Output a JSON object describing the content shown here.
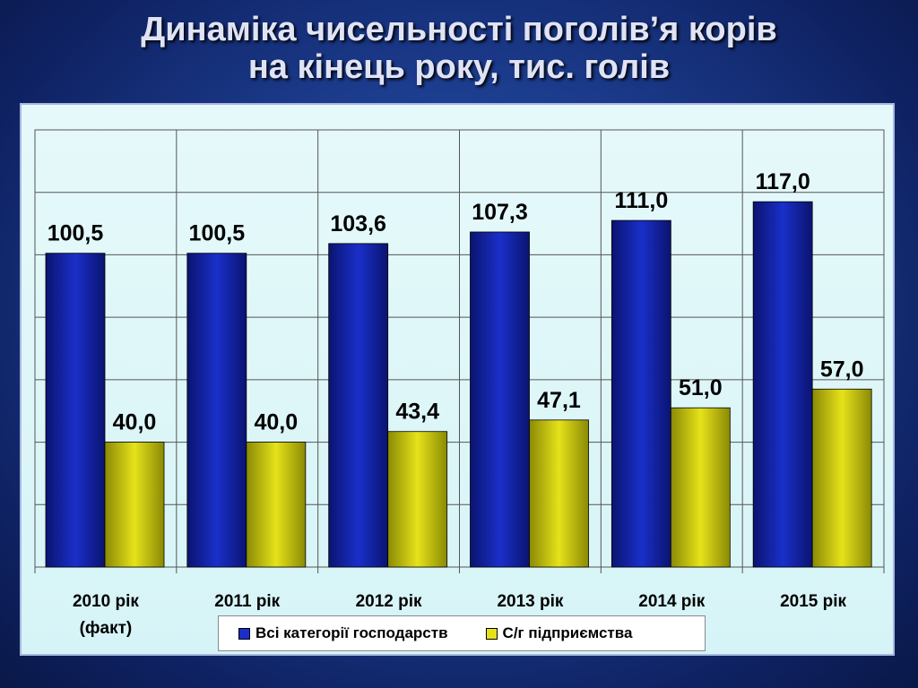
{
  "title": {
    "line1": "Динаміка чисельності поголів’я корів",
    "line2": "на кінець року, тис. голів"
  },
  "colors": {
    "series_all": "#1a2fc9",
    "series_agro": "#e6e21a",
    "background": "#1b3a8a",
    "plot_bg": "#d6f4f7"
  },
  "chart_data": {
    "type": "bar",
    "title": "Динаміка чисельності поголів’я корів на кінець року, тис. голів",
    "categories": [
      [
        "2010 рік",
        "(факт)"
      ],
      [
        "2011 рік"
      ],
      [
        "2012 рік"
      ],
      [
        "2013 рік"
      ],
      [
        "2014 рік"
      ],
      [
        "2015 рік"
      ]
    ],
    "series": [
      {
        "name": "Всі категорії господарств",
        "color": "#1a2fc9",
        "values": [
          100.5,
          100.5,
          103.6,
          107.3,
          111.0,
          117.0
        ],
        "labels": [
          "100,5",
          "100,5",
          "103,6",
          "107,3",
          "111,0",
          "117,0"
        ]
      },
      {
        "name": "С/г підприємства",
        "color": "#e6e21a",
        "values": [
          40.0,
          40.0,
          43.4,
          47.1,
          51.0,
          57.0
        ],
        "labels": [
          "40,0",
          "40,0",
          "43,4",
          "47,1",
          "51,0",
          "57,0"
        ]
      }
    ],
    "ylim": [
      0,
      140
    ],
    "grid": true,
    "legend": "bottom"
  }
}
